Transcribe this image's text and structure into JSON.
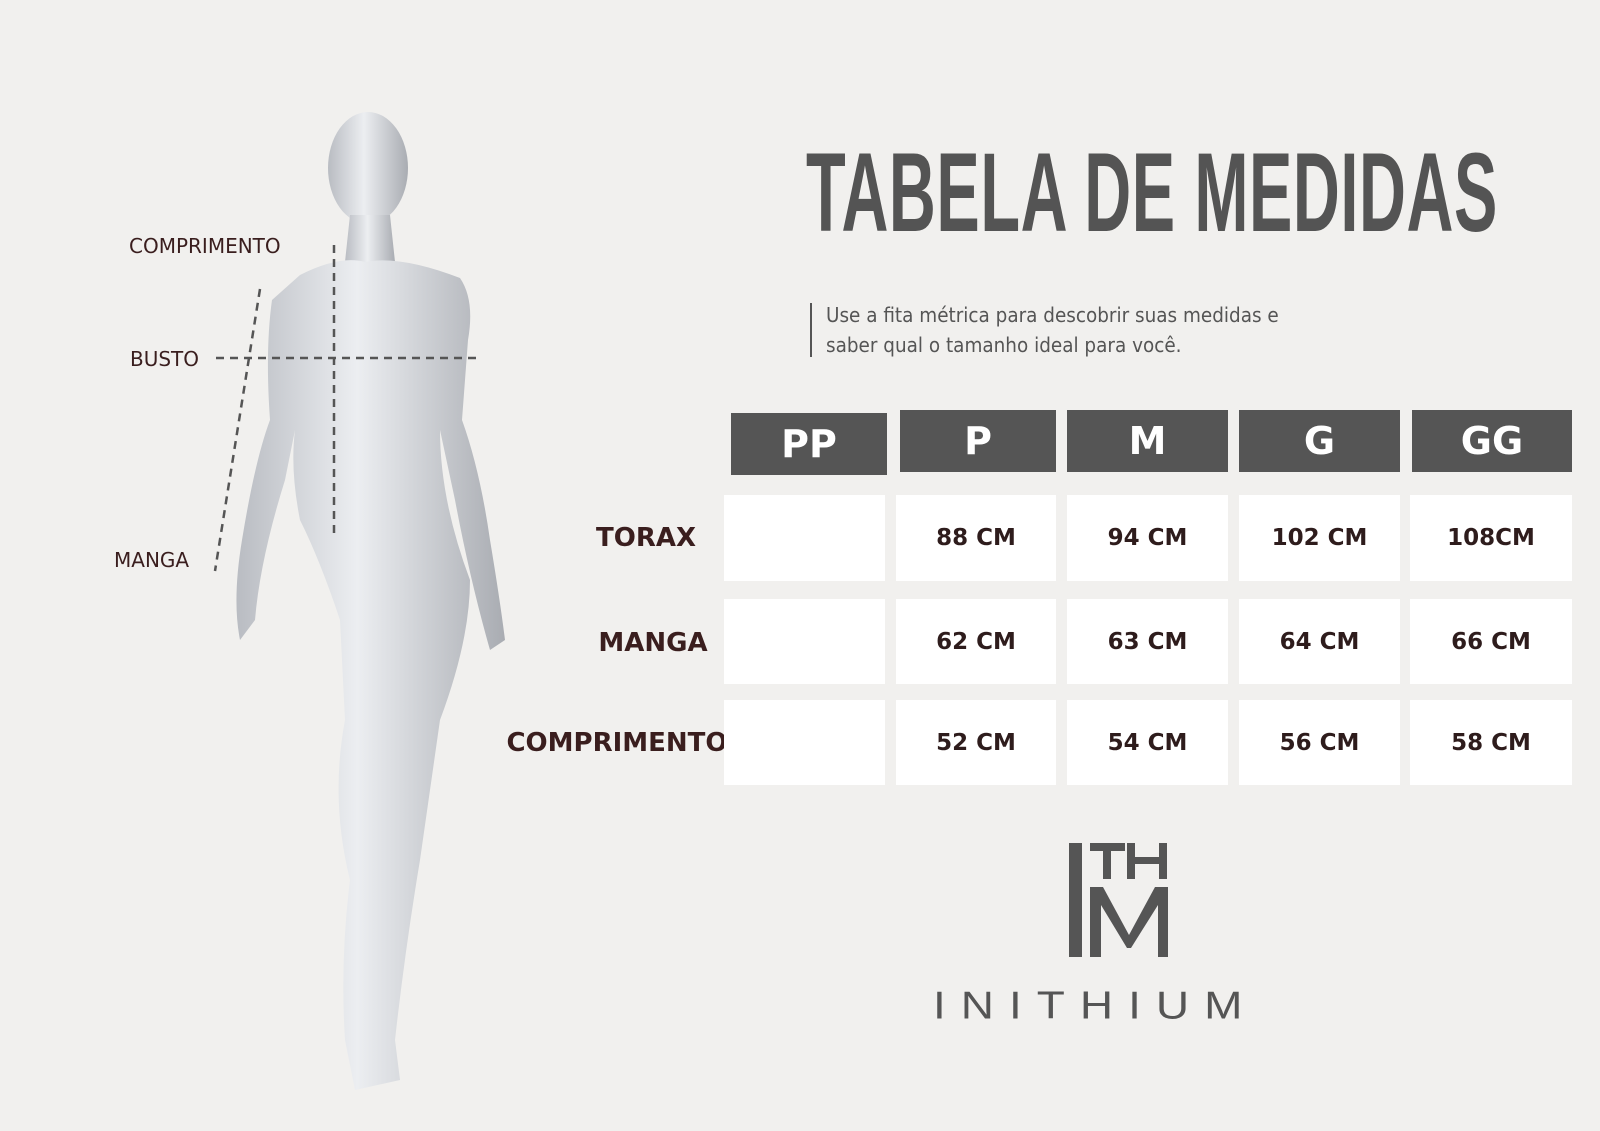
{
  "title": "TABELA DE MEDIDAS",
  "subtitle": {
    "line1": "Use a fita métrica para descobrir suas medidas e",
    "line2": "saber qual o tamanho ideal para você."
  },
  "body_labels": {
    "comprimento": "COMPRIMENTO",
    "busto": "BUSTO",
    "manga": "MANGA"
  },
  "table": {
    "sizes": [
      "PP",
      "P",
      "M",
      "G",
      "GG"
    ],
    "rows": [
      {
        "label": "TORAX",
        "values": [
          "",
          "88 CM",
          "94 CM",
          "102 CM",
          "108CM"
        ]
      },
      {
        "label": "MANGA",
        "values": [
          "",
          "62 CM",
          "63 CM",
          "64 CM",
          "66 CM"
        ]
      },
      {
        "label": "COMPRIMENTO",
        "values": [
          "",
          "52 CM",
          "54 CM",
          "56 CM",
          "58 CM"
        ]
      }
    ]
  },
  "brand": {
    "monogram": "ITHM",
    "name": "INITHIUM"
  },
  "colors": {
    "background": "#f1f0ee",
    "header": "#555555",
    "label_text": "#3a1e1e"
  }
}
